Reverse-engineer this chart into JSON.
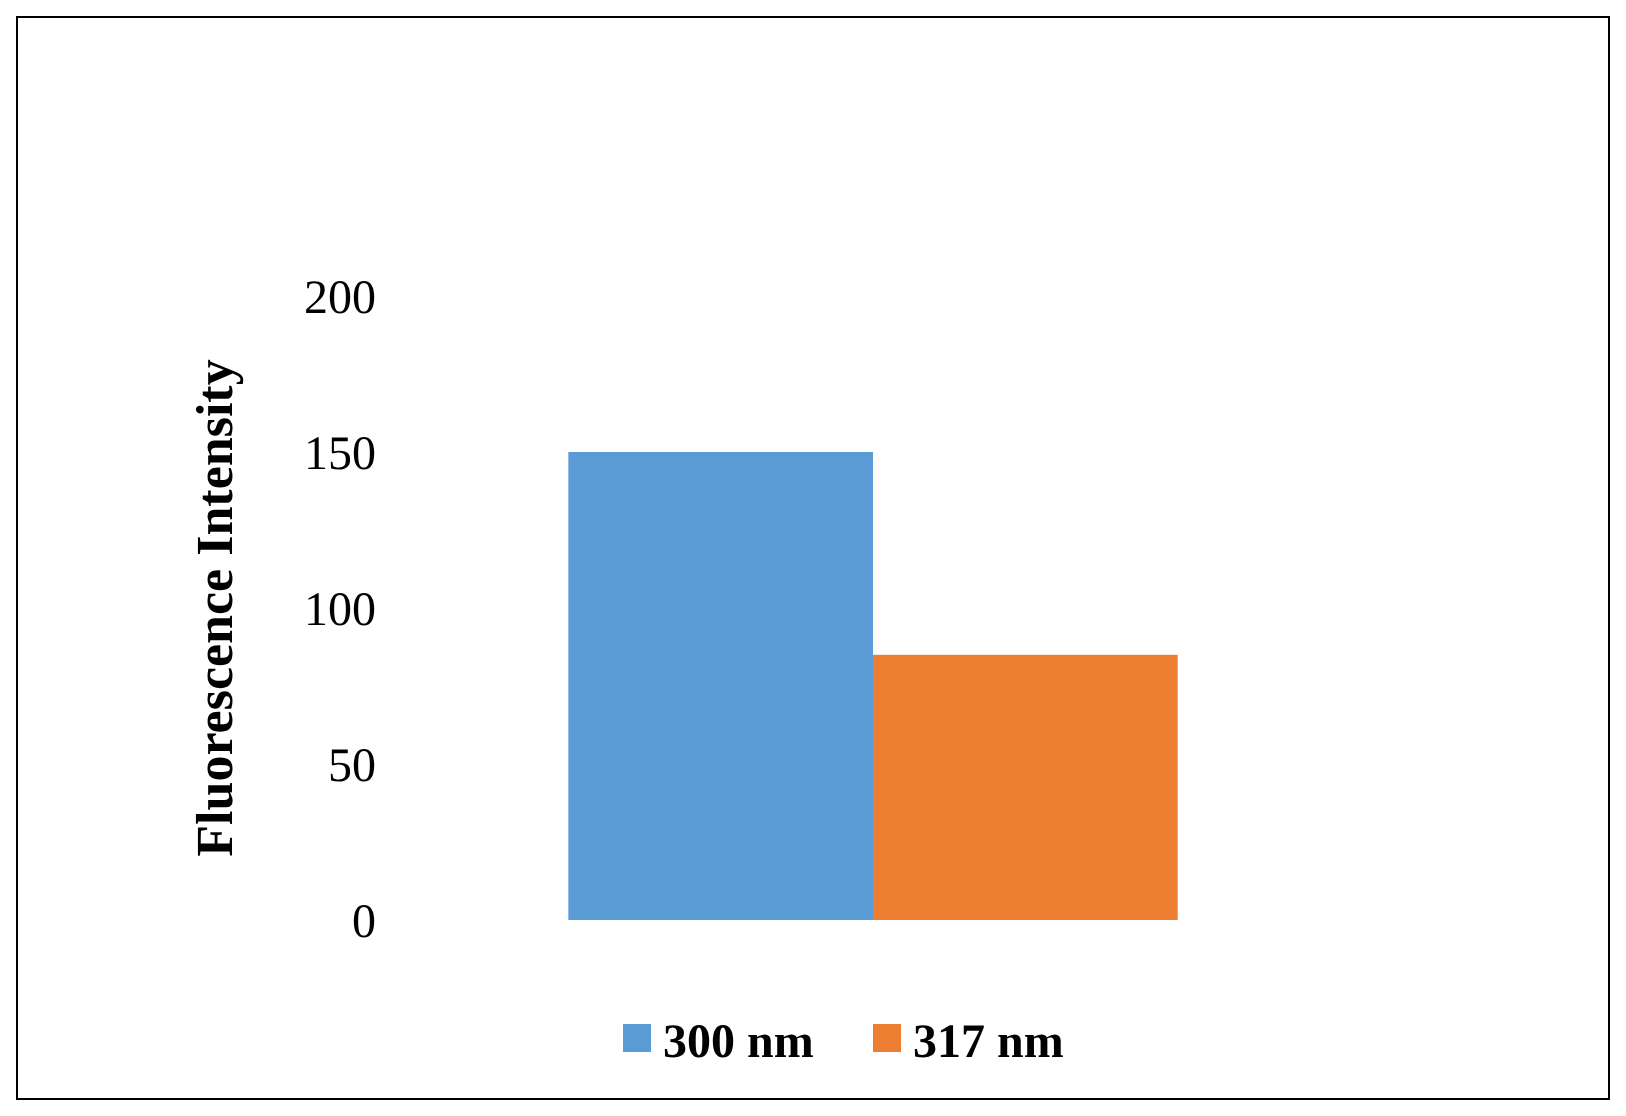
{
  "chart_data": {
    "type": "bar",
    "ylabel": "Fluorescence Intensity",
    "categories": [
      null
    ],
    "series": [
      {
        "name": "300 nm",
        "color": "#5b9bd5",
        "values": [
          150
        ]
      },
      {
        "name": "317 nm",
        "color": "#ed7d31",
        "values": [
          85
        ]
      }
    ],
    "ylim": [
      0,
      200
    ],
    "yticks": [
      0,
      50,
      100,
      150,
      200
    ],
    "grid": false,
    "legend": "bottom"
  }
}
